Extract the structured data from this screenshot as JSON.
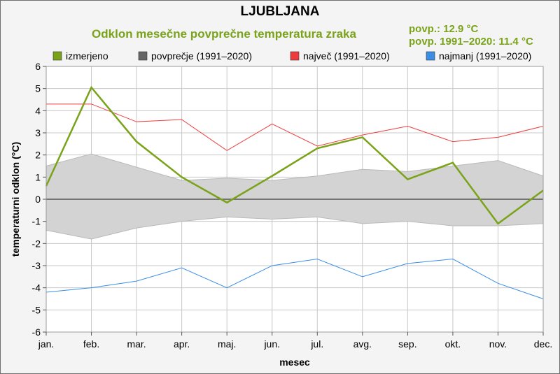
{
  "header": {
    "title": "LJUBLJANA",
    "subtitle": "Odklon mesečne povprečne temperatura zraka",
    "stat_mean": "povp.: 12.9 °C",
    "stat_normal": "povp. 1991–2020: 11.4 °C"
  },
  "legend": [
    {
      "label": "izmerjeno",
      "color": "#7aa31a"
    },
    {
      "label": "povprečje (1991–2020)",
      "color": "#666666"
    },
    {
      "label": "največ (1991–2020)",
      "color": "#ee3b3b"
    },
    {
      "label": "najmanj (1991–2020)",
      "color": "#3a8ee6"
    }
  ],
  "colors": {
    "accent": "#7aa31a",
    "band": "#d3d3d3",
    "band_edge": "#b9b9b9",
    "zero_line": "#555555",
    "grid": "#c8c8c8",
    "plot_bg": "#ffffff"
  },
  "chart_data": {
    "type": "line",
    "xlabel": "mesec",
    "ylabel": "temperaturni odklon (°C)",
    "ylim": [
      -6,
      6
    ],
    "yticks": [
      -6,
      -5,
      -4,
      -3,
      -2,
      -1,
      0,
      1,
      2,
      3,
      4,
      5,
      6
    ],
    "grid": true,
    "legend_position": "top",
    "categories": [
      "jan.",
      "feb.",
      "mar.",
      "apr.",
      "maj.",
      "jun.",
      "jul.",
      "avg.",
      "sep.",
      "okt.",
      "nov.",
      "dec."
    ],
    "series": [
      {
        "name": "izmerjeno",
        "values": [
          0.6,
          5.05,
          2.6,
          1.0,
          -0.15,
          1.05,
          2.3,
          2.8,
          0.9,
          1.65,
          -1.1,
          0.4
        ]
      },
      {
        "name": "največ (1991–2020)",
        "values": [
          4.3,
          4.3,
          3.5,
          3.6,
          2.2,
          3.4,
          2.4,
          2.9,
          3.3,
          2.6,
          2.8,
          3.3
        ]
      },
      {
        "name": "najmanj (1991–2020)",
        "values": [
          -4.2,
          -4.0,
          -3.7,
          -3.1,
          -4.0,
          -3.0,
          -2.7,
          -3.5,
          -2.9,
          -2.7,
          -3.8,
          -4.5
        ]
      }
    ],
    "band": {
      "name": "povprečje (1991–2020)",
      "upper": [
        1.5,
        2.05,
        1.45,
        0.85,
        0.95,
        0.85,
        1.05,
        1.35,
        1.25,
        1.5,
        1.75,
        1.05
      ],
      "lower": [
        -1.4,
        -1.8,
        -1.3,
        -1.0,
        -0.8,
        -0.9,
        -0.8,
        -1.1,
        -1.0,
        -1.2,
        -1.2,
        -1.1
      ]
    }
  }
}
